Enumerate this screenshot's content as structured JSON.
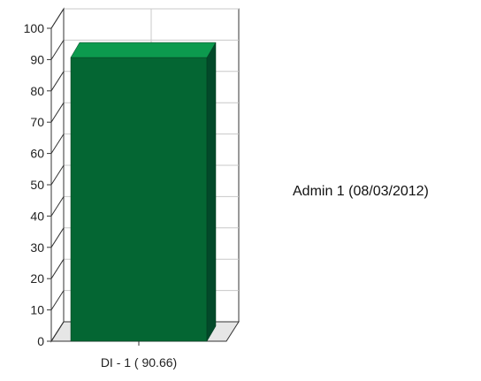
{
  "chart_data": {
    "type": "bar",
    "categories": [
      "DI - 1 ( 90.66)"
    ],
    "series": [
      {
        "name": "Admin 1 (08/03/2012)",
        "values": [
          90.66
        ]
      }
    ],
    "ylim": [
      0,
      100
    ],
    "yticks": [
      0,
      10,
      20,
      30,
      40,
      50,
      60,
      70,
      80,
      90,
      100
    ],
    "grid": true,
    "legend_position": "right",
    "three_d": true,
    "colors": {
      "bar_front": "#046633",
      "bar_top": "#0c9a4e",
      "bar_side": "#03492a",
      "grid": "#c8c8c8",
      "axis": "#333333",
      "wall": "#ffffff"
    }
  }
}
